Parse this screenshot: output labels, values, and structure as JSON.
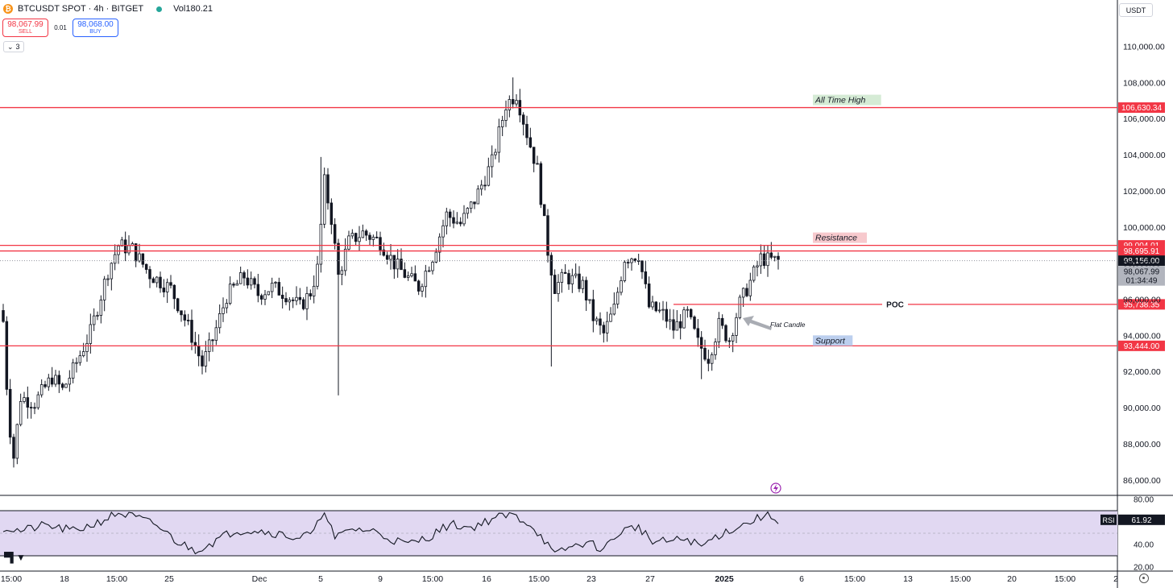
{
  "header": {
    "logo_glyph": "₿",
    "symbol_text": "BTCUSDT SPOT · 4h · BITGET",
    "volume_text": "Vol180.21"
  },
  "trade": {
    "sell_price": "98,067.99",
    "sell_label": "SELL",
    "spread": "0.01",
    "buy_price": "98,068.00",
    "buy_label": "BUY"
  },
  "indicators_collapsed_count": "3",
  "currency_label": "USDT",
  "price_axis": {
    "ticks": [
      "110,000.00",
      "108,000.00",
      "106,000.00",
      "104,000.00",
      "102,000.00",
      "100,000.00",
      "98,000.00",
      "96,000.00",
      "94,000.00",
      "92,000.00",
      "90,000.00",
      "88,000.00",
      "86,000.00"
    ]
  },
  "levels": [
    {
      "name": "all-time-high",
      "price": 106630.34,
      "price_label": "106,630.34",
      "tag": "All Time High",
      "tag_bg": "#d5ebd5"
    },
    {
      "name": "resistance",
      "price": 99004.01,
      "price_label": "99,004.01",
      "tag": "Resistance",
      "tag_bg": "#f7c9cd"
    },
    {
      "name": "resistance-lower",
      "price": 98695.91,
      "price_label": "98,695.91",
      "tag": "",
      "tag_bg": ""
    },
    {
      "name": "poc",
      "price": 95738.35,
      "price_label": "95,738.35",
      "tag": "POC",
      "tag_bg": ""
    },
    {
      "name": "support",
      "price": 93444.0,
      "price_label": "93,444.00",
      "tag": "Support",
      "tag_bg": "#bccfee"
    }
  ],
  "last_price_label": "98,156.00",
  "bid_price_label": "98,067.99",
  "countdown": "01:34:49",
  "annotation_text": "Flat Candle",
  "rsi": {
    "label": "RSI",
    "value": "61.92",
    "current": 61.92,
    "ticks": [
      "80.00",
      "40.00",
      "20.00"
    ]
  },
  "time_axis": {
    "ticks": [
      "15:00",
      "18",
      "15:00",
      "25",
      "Dec",
      "5",
      "9",
      "15:00",
      "16",
      "15:00",
      "23",
      "27",
      "2025",
      "6",
      "15:00",
      "13",
      "15:00",
      "20",
      "15:00",
      "2"
    ]
  },
  "colors": {
    "level_line": "#f23645",
    "rsi_fill": "#e1d8f2",
    "candle": "#131722",
    "last_price_bg": "#131722",
    "grey_tag": "#b2b5be",
    "lightning": "#9c27b0"
  },
  "chart_data": {
    "type": "candlestick",
    "timeframe": "4h",
    "y_range": [
      85000,
      111500
    ],
    "close_path": [
      {
        "t": 0,
        "v": 94800
      },
      {
        "t": 1.5,
        "v": 89500
      },
      {
        "t": 3,
        "v": 87300
      },
      {
        "t": 5,
        "v": 90600
      },
      {
        "t": 9,
        "v": 90300
      },
      {
        "t": 14,
        "v": 91700
      },
      {
        "t": 17,
        "v": 91000
      },
      {
        "t": 20,
        "v": 92100
      },
      {
        "t": 25,
        "v": 94200
      },
      {
        "t": 30,
        "v": 97600
      },
      {
        "t": 33,
        "v": 99000
      },
      {
        "t": 37,
        "v": 98800
      },
      {
        "t": 42,
        "v": 97400
      },
      {
        "t": 48,
        "v": 96600
      },
      {
        "t": 53,
        "v": 94500
      },
      {
        "t": 57,
        "v": 92400
      },
      {
        "t": 60,
        "v": 93800
      },
      {
        "t": 64,
        "v": 96200
      },
      {
        "t": 69,
        "v": 97300
      },
      {
        "t": 73,
        "v": 96300
      },
      {
        "t": 77,
        "v": 96700
      },
      {
        "t": 81,
        "v": 96300
      },
      {
        "t": 85,
        "v": 95600
      },
      {
        "t": 88,
        "v": 96400
      },
      {
        "t": 90,
        "v": 97700
      },
      {
        "t": 92,
        "v": 102500
      },
      {
        "t": 94,
        "v": 100500
      },
      {
        "t": 96,
        "v": 97300
      },
      {
        "t": 99,
        "v": 99200
      },
      {
        "t": 103,
        "v": 99700
      },
      {
        "t": 108,
        "v": 99200
      },
      {
        "t": 112,
        "v": 98000
      },
      {
        "t": 116,
        "v": 97200
      },
      {
        "t": 119,
        "v": 96700
      },
      {
        "t": 123,
        "v": 98400
      },
      {
        "t": 127,
        "v": 100700
      },
      {
        "t": 131,
        "v": 100200
      },
      {
        "t": 135,
        "v": 101500
      },
      {
        "t": 140,
        "v": 103600
      },
      {
        "t": 144,
        "v": 106800
      },
      {
        "t": 147,
        "v": 107400
      },
      {
        "t": 150,
        "v": 105200
      },
      {
        "t": 153,
        "v": 103200
      },
      {
        "t": 156,
        "v": 98700
      },
      {
        "t": 158,
        "v": 96700
      },
      {
        "t": 161,
        "v": 97300
      },
      {
        "t": 166,
        "v": 96800
      },
      {
        "t": 169,
        "v": 95000
      },
      {
        "t": 172,
        "v": 94100
      },
      {
        "t": 175,
        "v": 95500
      },
      {
        "t": 178,
        "v": 98300
      },
      {
        "t": 182,
        "v": 98500
      },
      {
        "t": 185,
        "v": 95600
      },
      {
        "t": 189,
        "v": 95200
      },
      {
        "t": 192,
        "v": 94400
      },
      {
        "t": 196,
        "v": 95200
      },
      {
        "t": 199,
        "v": 93600
      },
      {
        "t": 202,
        "v": 92800
      },
      {
        "t": 205,
        "v": 94600
      },
      {
        "t": 208,
        "v": 93800
      },
      {
        "t": 211,
        "v": 95800
      },
      {
        "t": 214,
        "v": 97000
      },
      {
        "t": 217,
        "v": 98300
      },
      {
        "t": 219,
        "v": 98200
      },
      {
        "t": 222,
        "v": 98156
      }
    ],
    "candle_count": 223,
    "rsi_series": [
      {
        "t": 0,
        "v": 55
      },
      {
        "t": 5,
        "v": 52
      },
      {
        "t": 12,
        "v": 57
      },
      {
        "t": 20,
        "v": 52
      },
      {
        "t": 26,
        "v": 58
      },
      {
        "t": 33,
        "v": 68
      },
      {
        "t": 38,
        "v": 64
      },
      {
        "t": 44,
        "v": 57
      },
      {
        "t": 50,
        "v": 42
      },
      {
        "t": 55,
        "v": 35
      },
      {
        "t": 60,
        "v": 42
      },
      {
        "t": 66,
        "v": 52
      },
      {
        "t": 72,
        "v": 53
      },
      {
        "t": 78,
        "v": 50
      },
      {
        "t": 84,
        "v": 46
      },
      {
        "t": 89,
        "v": 50
      },
      {
        "t": 92,
        "v": 72
      },
      {
        "t": 95,
        "v": 45
      },
      {
        "t": 100,
        "v": 54
      },
      {
        "t": 106,
        "v": 52
      },
      {
        "t": 111,
        "v": 45
      },
      {
        "t": 116,
        "v": 40
      },
      {
        "t": 122,
        "v": 47
      },
      {
        "t": 128,
        "v": 58
      },
      {
        "t": 134,
        "v": 55
      },
      {
        "t": 141,
        "v": 64
      },
      {
        "t": 146,
        "v": 66
      },
      {
        "t": 151,
        "v": 58
      },
      {
        "t": 155,
        "v": 44
      },
      {
        "t": 158,
        "v": 30
      },
      {
        "t": 161,
        "v": 36
      },
      {
        "t": 167,
        "v": 42
      },
      {
        "t": 172,
        "v": 36
      },
      {
        "t": 177,
        "v": 52
      },
      {
        "t": 182,
        "v": 56
      },
      {
        "t": 186,
        "v": 42
      },
      {
        "t": 191,
        "v": 43
      },
      {
        "t": 196,
        "v": 45
      },
      {
        "t": 200,
        "v": 38
      },
      {
        "t": 204,
        "v": 47
      },
      {
        "t": 209,
        "v": 54
      },
      {
        "t": 214,
        "v": 60
      },
      {
        "t": 218,
        "v": 66
      },
      {
        "t": 222,
        "v": 62
      }
    ],
    "rsi_range": [
      20,
      80
    ],
    "rsi_bands": [
      70,
      30
    ]
  }
}
